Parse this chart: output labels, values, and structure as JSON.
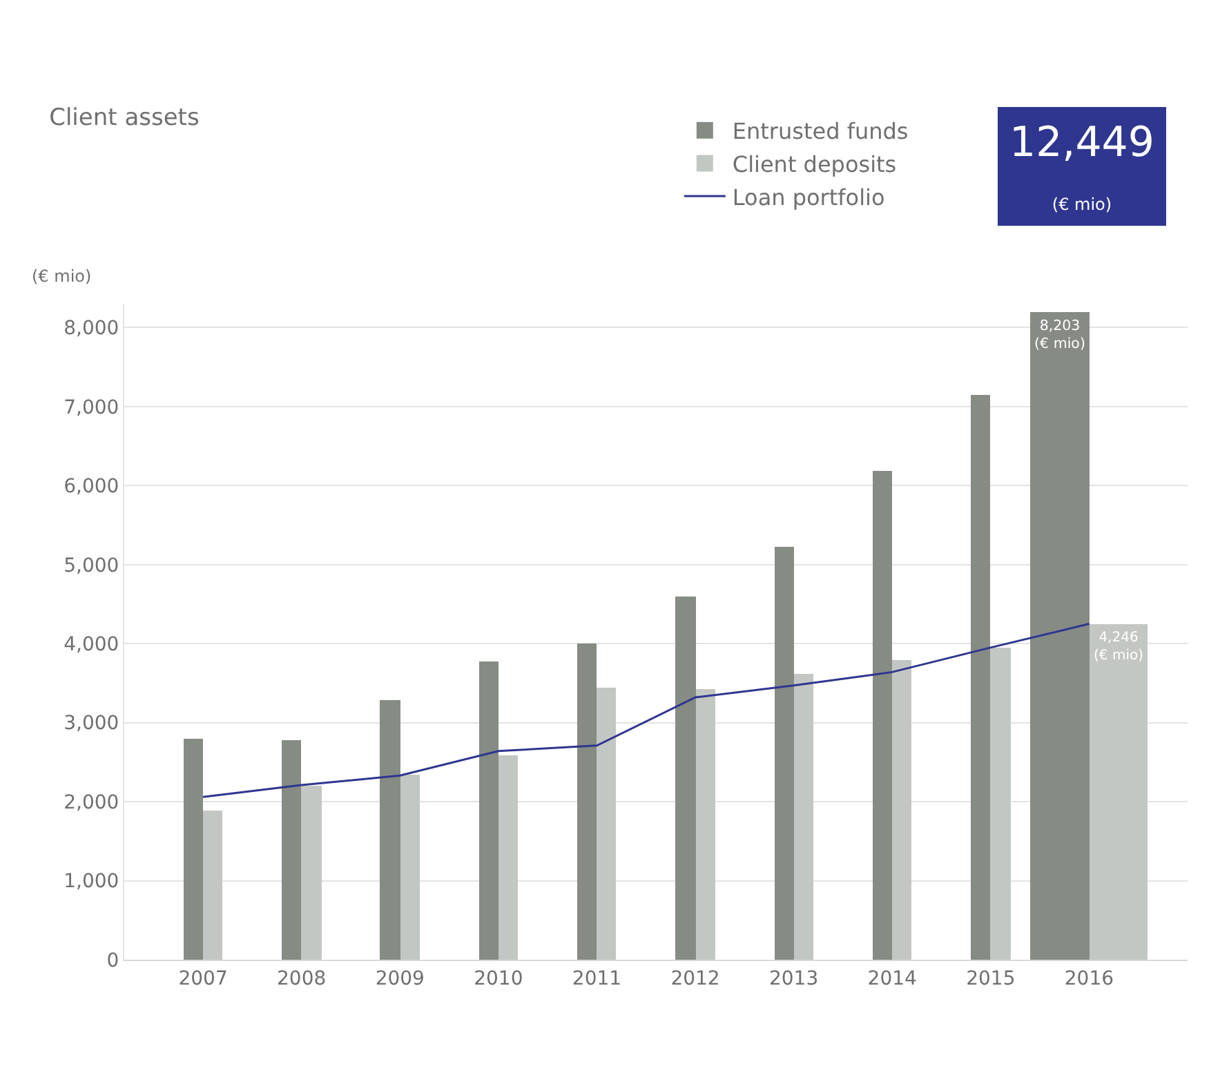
{
  "chart_data": {
    "type": "bar",
    "title": "Client assets",
    "ylabel": "(€ mio)",
    "categories": [
      "2007",
      "2008",
      "2009",
      "2010",
      "2011",
      "2012",
      "2013",
      "2014",
      "2015",
      "2016"
    ],
    "series": [
      {
        "name": "Entrusted funds",
        "color": "#868b84",
        "values": [
          2790,
          2780,
          3290,
          3770,
          4010,
          4600,
          5220,
          6190,
          7150,
          8203
        ],
        "value_labels": [
          null,
          null,
          null,
          null,
          null,
          null,
          null,
          null,
          null,
          "8,203\n(€ mio)"
        ]
      },
      {
        "name": "Client deposits",
        "color": "#c3c7c3",
        "values": [
          1880,
          2210,
          2350,
          2580,
          3450,
          3430,
          3610,
          3800,
          3950,
          4246
        ],
        "value_labels": [
          null,
          null,
          null,
          null,
          null,
          null,
          null,
          null,
          null,
          "4,246\n(€ mio)"
        ]
      },
      {
        "name": "Loan portfolio",
        "type": "line",
        "color": "#2e368f",
        "values": [
          2060,
          2210,
          2330,
          2640,
          2710,
          3320,
          3470,
          3640,
          3950,
          4250
        ]
      }
    ],
    "ylim": [
      0,
      8300
    ],
    "yticks": [
      {
        "value": 0,
        "label": "0"
      },
      {
        "value": 1000,
        "label": "1,000"
      },
      {
        "value": 2000,
        "label": "2,000"
      },
      {
        "value": 3000,
        "label": "3,000"
      },
      {
        "value": 4000,
        "label": "4,000"
      },
      {
        "value": 5000,
        "label": "5,000"
      },
      {
        "value": 6000,
        "label": "6,000"
      },
      {
        "value": 7000,
        "label": "7,000"
      },
      {
        "value": 8000,
        "label": "8,000"
      }
    ],
    "grid": "y",
    "legend": "top",
    "marker": "none",
    "line_style": "solid",
    "annotations": [
      "12,449\n(€ mio)"
    ]
  }
}
